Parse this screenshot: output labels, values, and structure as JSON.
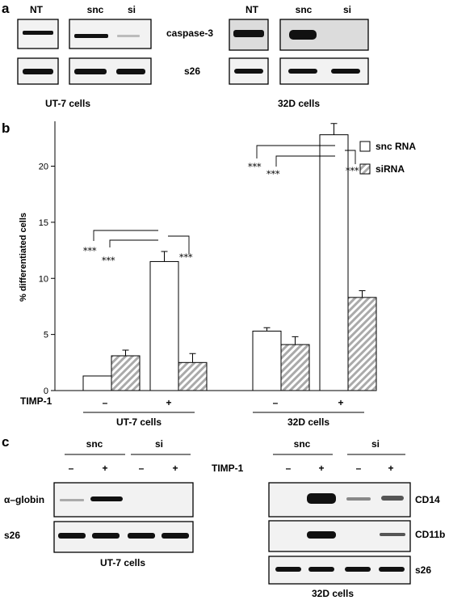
{
  "panel_a": {
    "letter": "a",
    "ut7": {
      "lane_labels": [
        "NT",
        "snc",
        "si"
      ],
      "row_labels": [
        "caspase-3",
        "s26"
      ],
      "caption": "UT-7 cells"
    },
    "d32": {
      "lane_labels": [
        "NT",
        "snc",
        "si"
      ],
      "caption": "32D cells"
    }
  },
  "panel_b": {
    "letter": "b",
    "timp_label": "TIMP-1",
    "timp_signs": [
      "–",
      "+",
      "–",
      "+"
    ],
    "group_labels": [
      "UT-7 cells",
      "32D cells"
    ],
    "significance": [
      "***",
      "***",
      "***",
      "***",
      "***",
      "***"
    ]
  },
  "chart_data": {
    "type": "bar",
    "ylabel": "% differentiated cells",
    "ylim": [
      0,
      24
    ],
    "yticks": [
      "0",
      "5",
      "10",
      "15",
      "20"
    ],
    "categories": [
      "UT-7 –",
      "UT-7 +",
      "32D –",
      "32D +"
    ],
    "series": [
      {
        "name": "snc RNA",
        "values": [
          1.3,
          11.5,
          5.3,
          22.8
        ],
        "errors": [
          0.0,
          0.9,
          0.3,
          1.0
        ],
        "color": "#ffffff"
      },
      {
        "name": "siRNA",
        "values": [
          3.1,
          2.5,
          4.1,
          8.3
        ],
        "errors": [
          0.5,
          0.8,
          0.7,
          0.6
        ],
        "color": "#bbbbbb"
      }
    ],
    "legend_position": "top-right"
  },
  "panel_c": {
    "letter": "c",
    "group_labels": [
      "snc",
      "si",
      "snc",
      "si"
    ],
    "timp_label": "TIMP-1",
    "signs": [
      "–",
      "+",
      "–",
      "+"
    ],
    "left_rows": [
      "α–globin",
      "s26"
    ],
    "right_rows": [
      "CD14",
      "CD11b",
      "s26"
    ],
    "captions": [
      "UT-7 cells",
      "32D cells"
    ]
  }
}
